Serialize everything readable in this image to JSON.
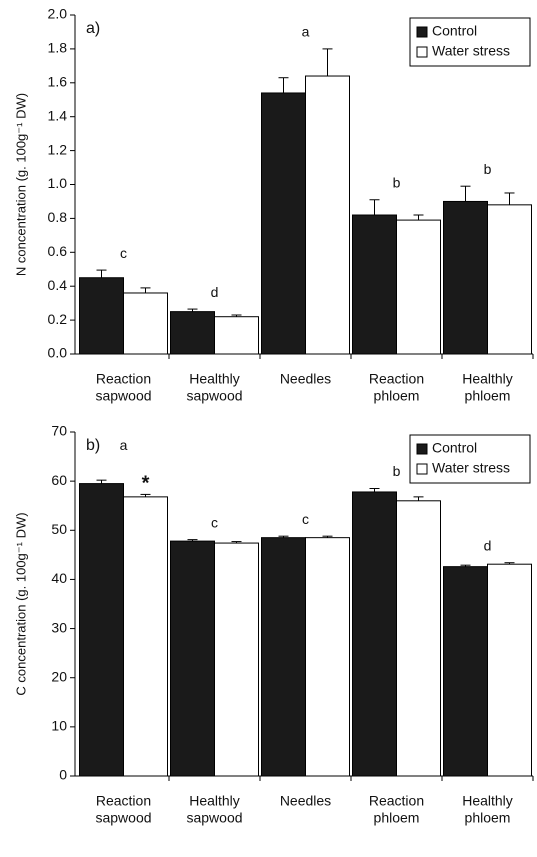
{
  "chart_data": [
    {
      "type": "bar",
      "panel_label": "a)",
      "ylabel": "N concentration (g. 100g⁻¹ DW)",
      "categories": [
        [
          "Reaction",
          "sapwood"
        ],
        [
          "Healthly",
          "sapwood"
        ],
        [
          "Needles"
        ],
        [
          "Reaction",
          "phloem"
        ],
        [
          "Healthly",
          "phloem"
        ]
      ],
      "series": [
        {
          "name": "Control",
          "color": "#1a1a1a",
          "values": [
            0.45,
            0.25,
            1.54,
            0.82,
            0.9
          ],
          "errors": [
            0.045,
            0.015,
            0.09,
            0.09,
            0.09
          ]
        },
        {
          "name": "Water stress",
          "color": "#ffffff",
          "values": [
            0.36,
            0.22,
            1.64,
            0.79,
            0.88
          ],
          "errors": [
            0.03,
            0.01,
            0.16,
            0.03,
            0.07
          ]
        }
      ],
      "group_labels": [
        "c",
        "d",
        "a",
        "b",
        "b"
      ],
      "ylim": [
        0,
        2
      ],
      "yticks": [
        {
          "value": 0,
          "label": "0.0"
        },
        0.2,
        0.4,
        0.6,
        0.8,
        {
          "value": 1,
          "label": "1.0"
        },
        1.2,
        1.4,
        1.6,
        1.8,
        {
          "value": 2,
          "label": "2.0"
        }
      ],
      "legend": "upper right"
    },
    {
      "type": "bar",
      "panel_label": "b)",
      "ylabel": "C concentration (g. 100g⁻¹ DW)",
      "categories": [
        [
          "Reaction",
          "sapwood"
        ],
        [
          "Healthly",
          "sapwood"
        ],
        [
          "Needles"
        ],
        [
          "Reaction",
          "phloem"
        ],
        [
          "Healthly",
          "phloem"
        ]
      ],
      "series": [
        {
          "name": "Control",
          "color": "#1a1a1a",
          "values": [
            59.5,
            47.8,
            48.5,
            57.8,
            42.6
          ],
          "errors": [
            0.7,
            0.3,
            0.3,
            0.7,
            0.3
          ]
        },
        {
          "name": "Water stress",
          "color": "#ffffff",
          "values": [
            56.8,
            47.4,
            48.5,
            56.0,
            43.1
          ],
          "errors": [
            0.5,
            0.3,
            0.3,
            0.8,
            0.3
          ]
        }
      ],
      "group_labels": [
        "a",
        "c",
        "c",
        "b",
        "d"
      ],
      "annotations": [
        {
          "text": "*",
          "series": 1,
          "category": 0
        }
      ],
      "ylim": [
        0,
        70
      ],
      "yticks": [
        0,
        10,
        20,
        30,
        40,
        50,
        60,
        70
      ],
      "legend": "upper right"
    }
  ]
}
